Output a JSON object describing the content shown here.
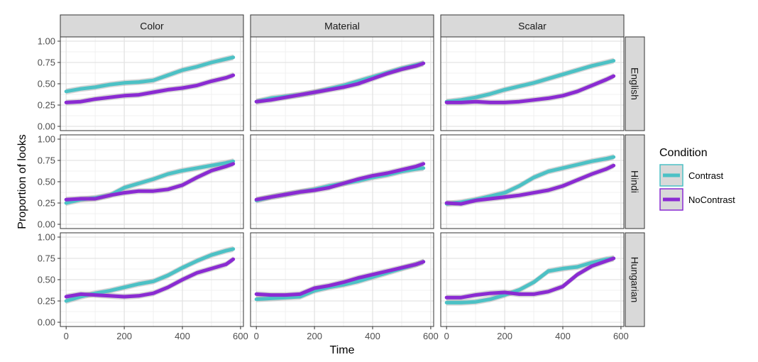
{
  "chart_data": {
    "type": "line",
    "xlabel": "Time",
    "ylabel": "Proportion of looks",
    "xlim": [
      -20,
      610
    ],
    "ylim": [
      -0.05,
      1.05
    ],
    "x_ticks": [
      0,
      200,
      400,
      600
    ],
    "x_tick_labels": [
      "0",
      "200",
      "400",
      "600"
    ],
    "y_ticks": [
      0,
      0.25,
      0.5,
      0.75,
      1.0
    ],
    "y_tick_labels": [
      "0.00",
      "0.25",
      "0.50",
      "0.75",
      "1.00"
    ],
    "grid": true,
    "column_facets": [
      "Color",
      "Material",
      "Scalar"
    ],
    "row_facets": [
      "English",
      "Hindi",
      "Hungarian"
    ],
    "legend": {
      "title": "Condition",
      "position": "right",
      "entries": [
        {
          "name": "Contrast",
          "color": "#4CC1C5"
        },
        {
          "name": "NoContrast",
          "color": "#8A2BD2"
        }
      ]
    },
    "x": [
      0,
      50,
      100,
      150,
      200,
      250,
      300,
      350,
      400,
      450,
      500,
      550,
      575
    ],
    "panels": [
      {
        "row": "English",
        "col": "Color",
        "series": [
          {
            "name": "Contrast",
            "values": [
              0.41,
              0.44,
              0.46,
              0.49,
              0.51,
              0.52,
              0.54,
              0.6,
              0.66,
              0.7,
              0.75,
              0.79,
              0.81
            ]
          },
          {
            "name": "NoContrast",
            "values": [
              0.28,
              0.29,
              0.32,
              0.34,
              0.36,
              0.37,
              0.4,
              0.43,
              0.45,
              0.48,
              0.53,
              0.57,
              0.6
            ]
          }
        ]
      },
      {
        "row": "English",
        "col": "Material",
        "series": [
          {
            "name": "Contrast",
            "values": [
              0.29,
              0.33,
              0.35,
              0.37,
              0.4,
              0.44,
              0.48,
              0.53,
              0.58,
              0.63,
              0.68,
              0.72,
              0.74
            ]
          },
          {
            "name": "NoContrast",
            "values": [
              0.29,
              0.31,
              0.34,
              0.37,
              0.4,
              0.43,
              0.46,
              0.5,
              0.56,
              0.62,
              0.67,
              0.71,
              0.74
            ]
          }
        ]
      },
      {
        "row": "English",
        "col": "Scalar",
        "series": [
          {
            "name": "Contrast",
            "values": [
              0.29,
              0.31,
              0.34,
              0.38,
              0.43,
              0.47,
              0.51,
              0.56,
              0.61,
              0.66,
              0.71,
              0.75,
              0.77
            ]
          },
          {
            "name": "NoContrast",
            "values": [
              0.28,
              0.28,
              0.29,
              0.28,
              0.28,
              0.29,
              0.31,
              0.33,
              0.36,
              0.41,
              0.48,
              0.55,
              0.59
            ]
          }
        ]
      },
      {
        "row": "Hindi",
        "col": "Color",
        "series": [
          {
            "name": "Contrast",
            "values": [
              0.25,
              0.29,
              0.31,
              0.34,
              0.43,
              0.48,
              0.53,
              0.59,
              0.63,
              0.66,
              0.69,
              0.72,
              0.74
            ]
          },
          {
            "name": "NoContrast",
            "values": [
              0.29,
              0.3,
              0.3,
              0.34,
              0.37,
              0.39,
              0.39,
              0.41,
              0.46,
              0.55,
              0.63,
              0.68,
              0.71
            ]
          }
        ]
      },
      {
        "row": "Hindi",
        "col": "Material",
        "series": [
          {
            "name": "Contrast",
            "values": [
              0.28,
              0.32,
              0.35,
              0.38,
              0.41,
              0.45,
              0.48,
              0.51,
              0.55,
              0.58,
              0.62,
              0.65,
              0.66
            ]
          },
          {
            "name": "NoContrast",
            "values": [
              0.29,
              0.32,
              0.35,
              0.38,
              0.4,
              0.43,
              0.48,
              0.53,
              0.57,
              0.6,
              0.64,
              0.68,
              0.71
            ]
          }
        ]
      },
      {
        "row": "Hindi",
        "col": "Scalar",
        "series": [
          {
            "name": "Contrast",
            "values": [
              0.24,
              0.26,
              0.29,
              0.33,
              0.37,
              0.45,
              0.55,
              0.62,
              0.66,
              0.7,
              0.74,
              0.77,
              0.79
            ]
          },
          {
            "name": "NoContrast",
            "values": [
              0.25,
              0.24,
              0.28,
              0.3,
              0.32,
              0.34,
              0.37,
              0.4,
              0.45,
              0.52,
              0.59,
              0.65,
              0.69
            ]
          }
        ]
      },
      {
        "row": "Hungarian",
        "col": "Color",
        "series": [
          {
            "name": "Contrast",
            "values": [
              0.25,
              0.3,
              0.34,
              0.37,
              0.41,
              0.45,
              0.48,
              0.55,
              0.64,
              0.72,
              0.79,
              0.84,
              0.86
            ]
          },
          {
            "name": "NoContrast",
            "values": [
              0.3,
              0.33,
              0.32,
              0.31,
              0.3,
              0.31,
              0.34,
              0.41,
              0.5,
              0.58,
              0.63,
              0.68,
              0.74
            ]
          }
        ]
      },
      {
        "row": "Hungarian",
        "col": "Material",
        "series": [
          {
            "name": "Contrast",
            "values": [
              0.27,
              0.28,
              0.29,
              0.3,
              0.37,
              0.41,
              0.44,
              0.48,
              0.53,
              0.58,
              0.63,
              0.68,
              0.71
            ]
          },
          {
            "name": "NoContrast",
            "values": [
              0.33,
              0.32,
              0.32,
              0.33,
              0.4,
              0.43,
              0.47,
              0.52,
              0.56,
              0.6,
              0.64,
              0.68,
              0.71
            ]
          }
        ]
      },
      {
        "row": "Hungarian",
        "col": "Scalar",
        "series": [
          {
            "name": "Contrast",
            "values": [
              0.23,
              0.23,
              0.24,
              0.27,
              0.32,
              0.38,
              0.47,
              0.6,
              0.63,
              0.65,
              0.7,
              0.74,
              0.75
            ]
          },
          {
            "name": "NoContrast",
            "values": [
              0.29,
              0.29,
              0.32,
              0.34,
              0.35,
              0.33,
              0.33,
              0.36,
              0.42,
              0.56,
              0.66,
              0.72,
              0.75
            ]
          }
        ]
      }
    ]
  }
}
